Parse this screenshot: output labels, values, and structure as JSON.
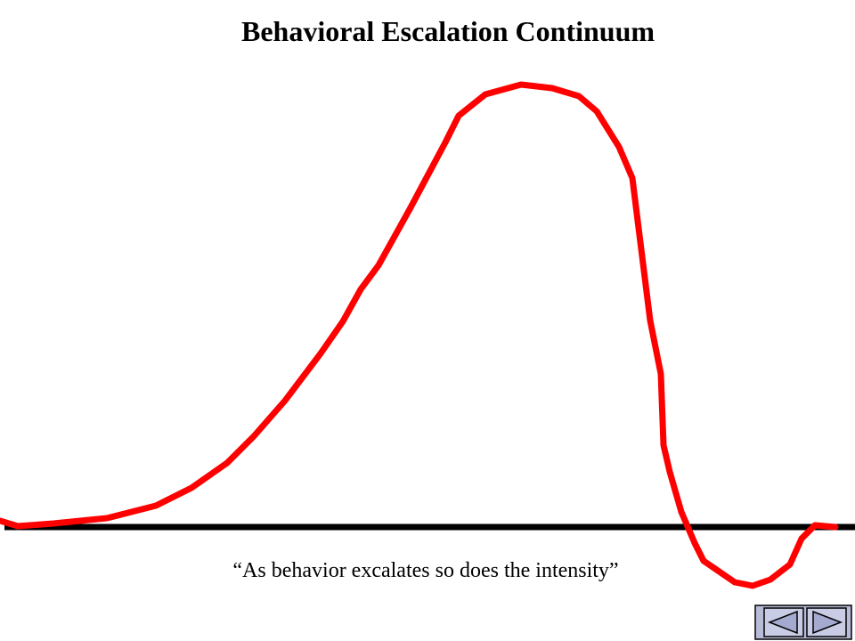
{
  "title": "Behavioral Escalation Continuum",
  "caption": "“As behavior excalates so does the intensity”"
}
